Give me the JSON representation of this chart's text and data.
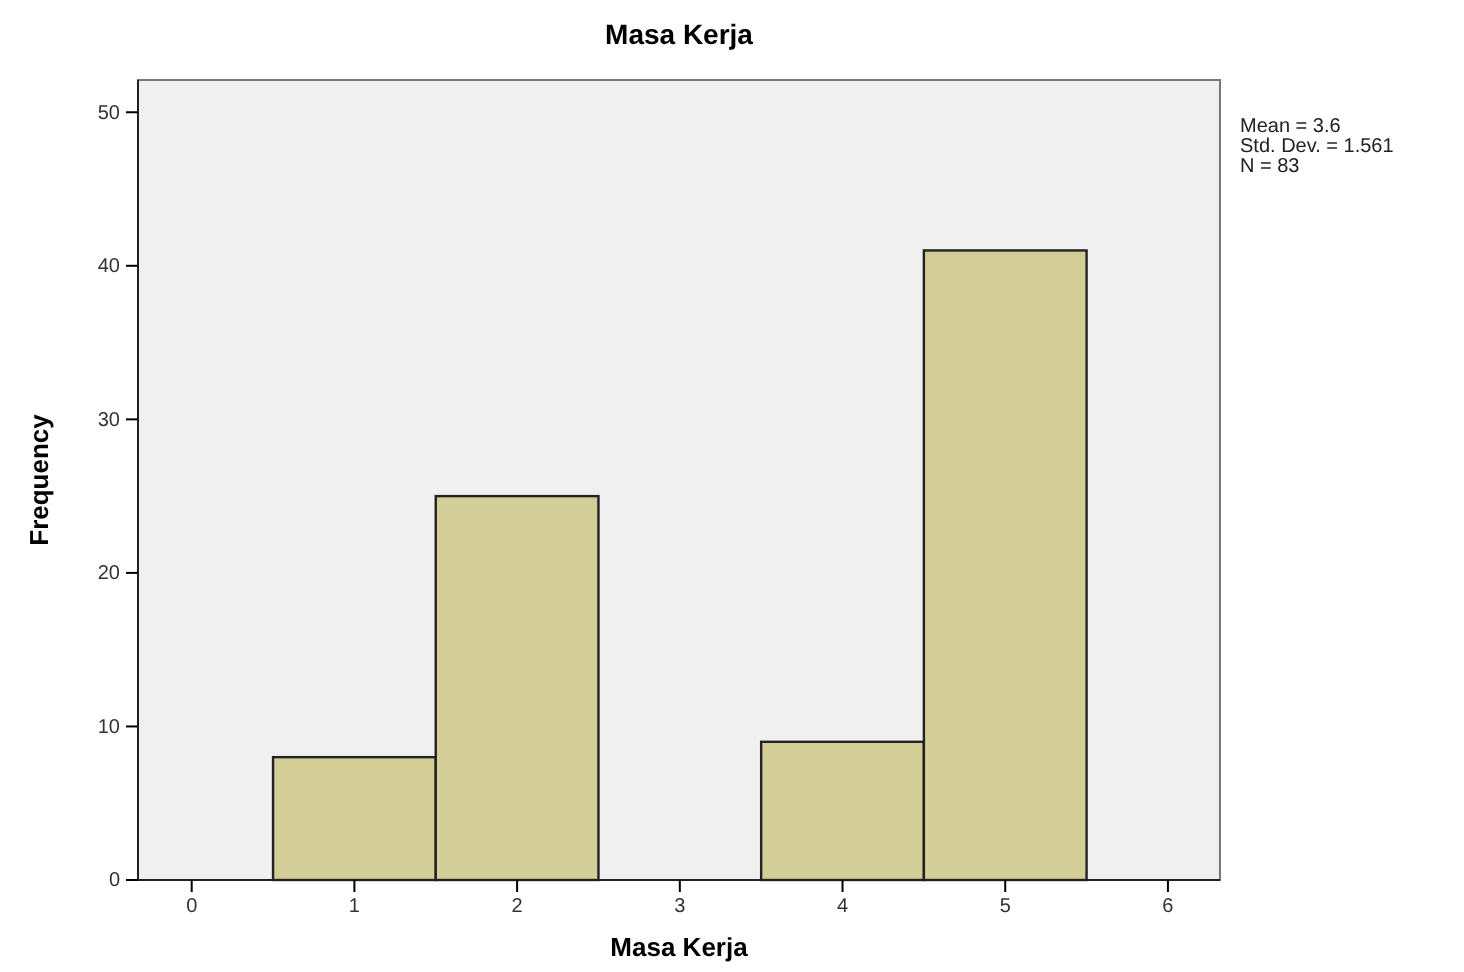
{
  "chart_data": {
    "type": "histogram",
    "title": "Masa Kerja",
    "xlabel": "Masa Kerja",
    "ylabel": "Frequency",
    "bins": [
      0.5,
      1.5,
      2.5,
      3.5,
      4.5,
      5.5
    ],
    "values": [
      8,
      25,
      0,
      9,
      41
    ],
    "color": "#d3ce97",
    "xlim": [
      -0.33,
      6.32
    ],
    "xticks": [
      0,
      1,
      2,
      3,
      4,
      5,
      6
    ],
    "ylim": [
      0,
      52.1
    ],
    "yticks": [
      0,
      10,
      20,
      30,
      40,
      50
    ],
    "annotations": [
      "Mean = 3.6",
      "Std. Dev. = 1.561",
      "N = 83"
    ]
  }
}
